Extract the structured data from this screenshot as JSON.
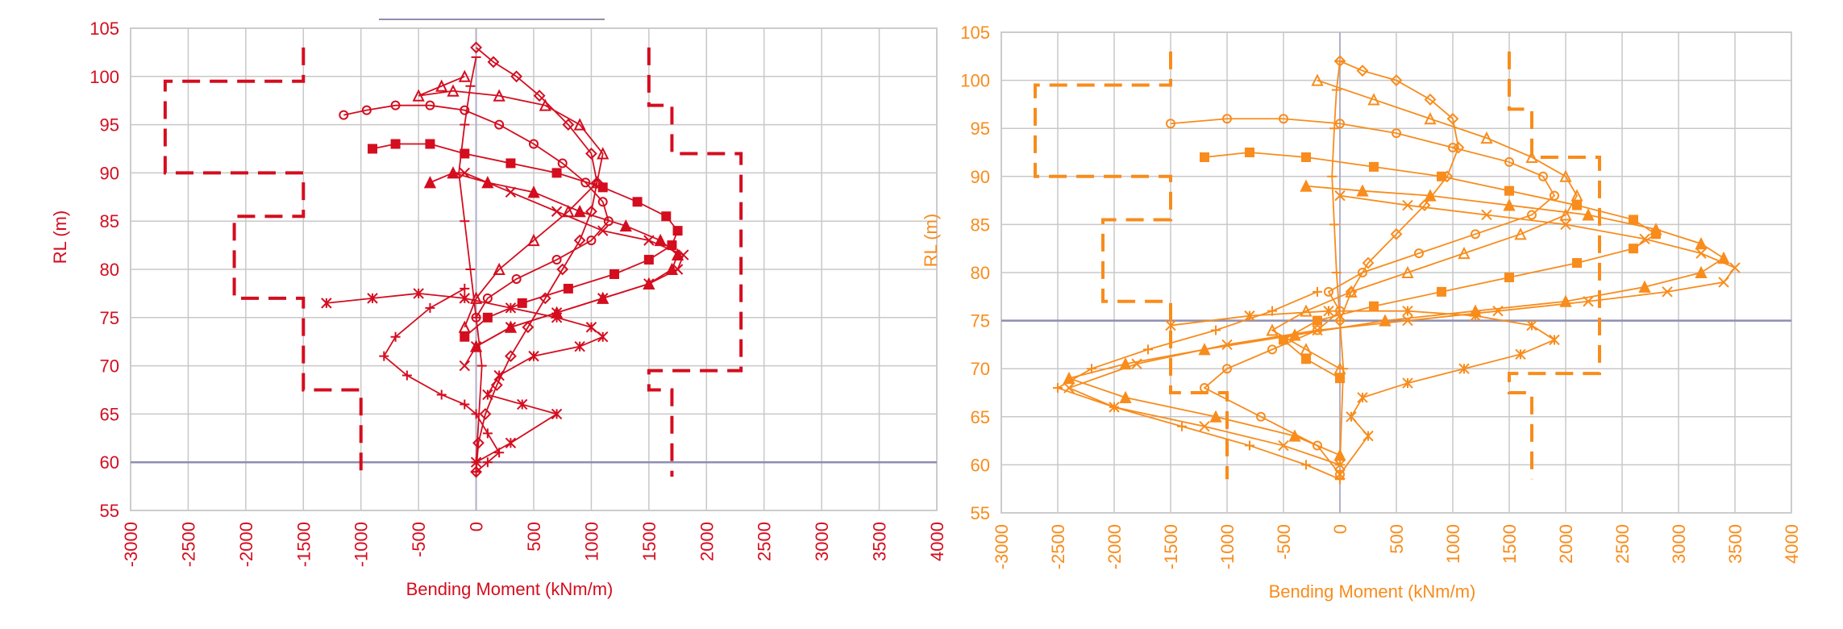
{
  "chart_data": [
    {
      "type": "line",
      "color": "#d40d1f",
      "xlabel": "Bending Moment (kNm/m)",
      "ylabel": "RL (m)",
      "xlim": [
        -3000,
        4000
      ],
      "ylim": [
        55,
        105
      ],
      "xticks": [
        "-3000",
        "-2500",
        "-2000",
        "-1500",
        "-1000",
        "-500",
        "0",
        "500",
        "1000",
        "1500",
        "2000",
        "2500",
        "3000",
        "3500",
        "4000"
      ],
      "yticks": [
        "55",
        "60",
        "65",
        "70",
        "75",
        "80",
        "85",
        "90",
        "95",
        "100",
        "105"
      ],
      "grid": true,
      "series": [
        {
          "marker": "diamond",
          "x": [
            0,
            150,
            350,
            550,
            800,
            1000,
            1050,
            1000,
            900,
            750,
            600,
            450,
            300,
            180,
            80,
            20,
            0
          ],
          "y": [
            103,
            101.5,
            100,
            98,
            95,
            92,
            89,
            86,
            83,
            80,
            77,
            74,
            71,
            68,
            65,
            62,
            59
          ]
        },
        {
          "marker": "circle",
          "x": [
            -1150,
            -950,
            -700,
            -400,
            -100,
            200,
            500,
            750,
            950,
            1100,
            1150,
            1000,
            700,
            350,
            100,
            0
          ],
          "y": [
            96,
            96.5,
            97,
            97,
            96.5,
            95,
            93,
            91,
            89,
            87,
            85,
            83,
            81,
            79,
            77,
            75
          ]
        },
        {
          "marker": "triangle-open",
          "x": [
            -100,
            -300,
            -500,
            -200,
            200,
            600,
            900,
            1100,
            1050,
            800,
            500,
            200,
            0,
            -100
          ],
          "y": [
            100,
            99,
            98,
            98.5,
            98,
            97,
            95,
            92,
            89,
            86,
            83,
            80,
            77,
            74
          ]
        },
        {
          "marker": "square",
          "x": [
            -900,
            -700,
            -400,
            -100,
            300,
            700,
            1100,
            1400,
            1650,
            1750,
            1700,
            1500,
            1200,
            800,
            400,
            100,
            -100
          ],
          "y": [
            92.5,
            93,
            93,
            92,
            91,
            90,
            88.5,
            87,
            85.5,
            84,
            82.5,
            81,
            79.5,
            78,
            76.5,
            75,
            73
          ]
        },
        {
          "marker": "triangle",
          "x": [
            -400,
            -200,
            100,
            500,
            900,
            1300,
            1600,
            1750,
            1700,
            1500,
            1100,
            700,
            300,
            0
          ],
          "y": [
            89,
            90,
            89,
            88,
            86,
            84.5,
            83,
            81.5,
            80,
            78.5,
            77,
            75.5,
            74,
            72
          ]
        },
        {
          "marker": "x",
          "x": [
            -100,
            300,
            700,
            1100,
            1500,
            1800,
            1750,
            1500,
            1100,
            700,
            300,
            0,
            -100
          ],
          "y": [
            90,
            88,
            86,
            84,
            83,
            81.5,
            80,
            78.5,
            77,
            75.5,
            74,
            72,
            70
          ]
        },
        {
          "marker": "asterisk",
          "x": [
            -1300,
            -900,
            -500,
            -100,
            300,
            700,
            1000,
            1100,
            900,
            500,
            200,
            100,
            400,
            700,
            300,
            0
          ],
          "y": [
            76.5,
            77,
            77.5,
            77,
            76,
            75,
            74,
            73,
            72,
            71,
            69,
            67,
            66,
            65,
            62,
            60
          ]
        },
        {
          "marker": "plus",
          "x": [
            -100,
            -400,
            -700,
            -800,
            -600,
            -300,
            -100,
            0,
            100,
            200,
            100,
            0
          ],
          "y": [
            78,
            76,
            73,
            71,
            69,
            67,
            66,
            65,
            63,
            61,
            60,
            59
          ]
        },
        {
          "marker": "dash",
          "x": [
            0,
            -50,
            -100,
            -150,
            -100,
            -50,
            0,
            50,
            0
          ],
          "y": [
            102,
            99,
            95,
            90,
            85,
            80,
            75,
            70,
            60
          ]
        }
      ],
      "bounds": [
        {
          "x": [
            -1500,
            -1500,
            -2700,
            -2700,
            -1500,
            -1500,
            -2100,
            -2100,
            -1500,
            -1500,
            -1000,
            -1000
          ],
          "y": [
            103,
            99.5,
            99.5,
            90,
            90,
            85.5,
            85.5,
            77,
            77,
            67.5,
            67.5,
            58.5
          ]
        },
        {
          "x": [
            1500,
            1500,
            1700,
            1700,
            2300,
            2300,
            1500,
            1500,
            1700,
            1700
          ],
          "y": [
            103,
            97,
            97,
            92,
            92,
            69.5,
            69.5,
            67.5,
            67.5,
            58.5
          ]
        }
      ]
    },
    {
      "type": "line",
      "color": "#f88c1c",
      "xlabel": "Bending Moment (kNm/m)",
      "ylabel": "RL (m)",
      "xlim": [
        -3000,
        4000
      ],
      "ylim": [
        55,
        105
      ],
      "xticks": [
        "-3000",
        "-2500",
        "-2000",
        "-1500",
        "-1000",
        "-500",
        "0",
        "500",
        "1000",
        "1500",
        "2000",
        "2500",
        "3000",
        "3500",
        "4000"
      ],
      "yticks": [
        "55",
        "60",
        "65",
        "70",
        "75",
        "80",
        "85",
        "90",
        "95",
        "100",
        "105"
      ],
      "grid": true,
      "series": [
        {
          "marker": "diamond",
          "x": [
            0,
            200,
            500,
            800,
            1000,
            1050,
            950,
            750,
            500,
            250,
            100,
            0
          ],
          "y": [
            102,
            101,
            100,
            98,
            96,
            93,
            90,
            87,
            84,
            81,
            78,
            75
          ]
        },
        {
          "marker": "circle",
          "x": [
            -1500,
            -1000,
            -500,
            0,
            500,
            1000,
            1500,
            1800,
            1900,
            1700,
            1200,
            700,
            200,
            -100,
            0,
            -200,
            -600,
            -1000,
            -1200,
            -700,
            -200,
            0
          ],
          "y": [
            95.5,
            96,
            96,
            95.5,
            94.5,
            93,
            91.5,
            90,
            88,
            86,
            84,
            82,
            80,
            78,
            76,
            74,
            72,
            70,
            68,
            65,
            62,
            59
          ]
        },
        {
          "marker": "triangle-open",
          "x": [
            -200,
            300,
            800,
            1300,
            1700,
            2000,
            2100,
            2000,
            1600,
            1100,
            600,
            100,
            -300,
            -600,
            -300,
            0
          ],
          "y": [
            100,
            98,
            96,
            94,
            92,
            90,
            88,
            86,
            84,
            82,
            80,
            78,
            76,
            74,
            72,
            70
          ]
        },
        {
          "marker": "square",
          "x": [
            -1200,
            -800,
            -300,
            300,
            900,
            1500,
            2100,
            2600,
            2800,
            2600,
            2100,
            1500,
            900,
            300,
            -200,
            -500,
            -300,
            0
          ],
          "y": [
            92,
            92.5,
            92,
            91,
            90,
            88.5,
            87,
            85.5,
            84,
            82.5,
            81,
            79.5,
            78,
            76.5,
            75,
            73,
            71,
            69
          ]
        },
        {
          "marker": "triangle",
          "x": [
            -300,
            200,
            800,
            1500,
            2200,
            2800,
            3200,
            3400,
            3200,
            2700,
            2000,
            1200,
            400,
            -400,
            -1200,
            -1900,
            -2400,
            -1900,
            -1100,
            -400,
            0
          ],
          "y": [
            89,
            88.5,
            88,
            87,
            86,
            84.5,
            83,
            81.5,
            80,
            78.5,
            77,
            76,
            75,
            73.5,
            72,
            70.5,
            69,
            67,
            65,
            63,
            61
          ]
        },
        {
          "marker": "x",
          "x": [
            0,
            600,
            1300,
            2000,
            2700,
            3200,
            3500,
            3400,
            2900,
            2200,
            1400,
            600,
            -200,
            -1000,
            -1800,
            -2400,
            -2000,
            -1200,
            -500,
            0
          ],
          "y": [
            88,
            87,
            86,
            85,
            83.5,
            82,
            80.5,
            79,
            78,
            77,
            76,
            75,
            74,
            72.5,
            70.5,
            68,
            66,
            64,
            62,
            60
          ]
        },
        {
          "marker": "asterisk",
          "x": [
            -1500,
            -800,
            -100,
            600,
            1200,
            1700,
            1900,
            1600,
            1100,
            600,
            200,
            100,
            250,
            0
          ],
          "y": [
            74.5,
            75.5,
            76,
            76,
            75.5,
            74.5,
            73,
            71.5,
            70,
            68.5,
            67,
            65,
            63,
            59
          ]
        },
        {
          "marker": "plus",
          "x": [
            -200,
            -600,
            -1100,
            -1700,
            -2200,
            -2500,
            -2000,
            -1400,
            -800,
            -300,
            0
          ],
          "y": [
            78,
            76,
            74,
            72,
            70,
            68,
            66,
            64,
            62,
            60,
            58.5
          ]
        },
        {
          "marker": "dash",
          "x": [
            0,
            -30,
            -50,
            -70,
            -50,
            -30,
            0,
            30,
            0
          ],
          "y": [
            102,
            99,
            95,
            90,
            85,
            80,
            75,
            70,
            60
          ]
        }
      ],
      "bounds": [
        {
          "x": [
            -1500,
            -1500,
            -2700,
            -2700,
            -1500,
            -1500,
            -2100,
            -2100,
            -1500,
            -1500,
            -1000,
            -1000
          ],
          "y": [
            103,
            99.5,
            99.5,
            90,
            90,
            85.5,
            85.5,
            77,
            77,
            67.5,
            67.5,
            58.5
          ]
        },
        {
          "x": [
            1500,
            1500,
            1700,
            1700,
            2300,
            2300,
            1500,
            1500,
            1700,
            1700
          ],
          "y": [
            103,
            97,
            97,
            92,
            92,
            69.5,
            69.5,
            67.5,
            67.5,
            58.5
          ]
        }
      ]
    }
  ]
}
